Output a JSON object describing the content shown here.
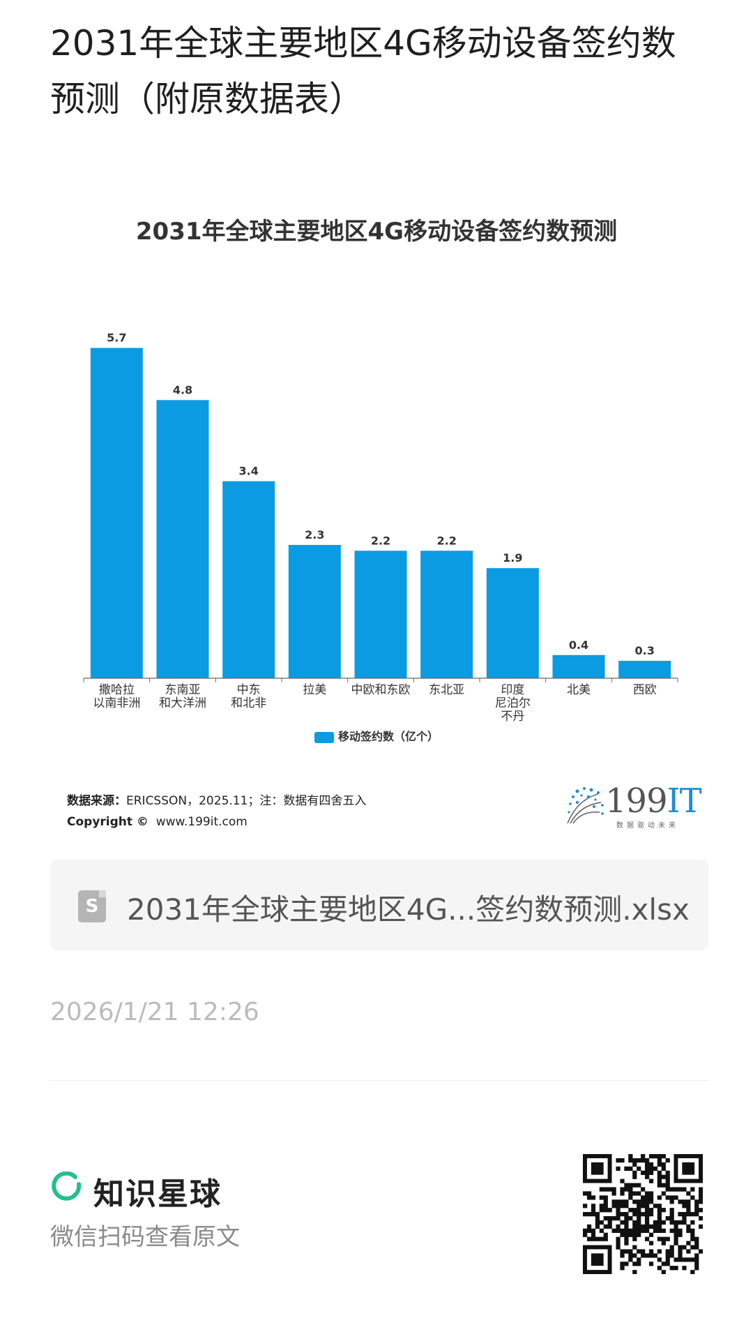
{
  "post": {
    "title": "2031年全球主要地区4G移动设备签约数预测（附原数据表）"
  },
  "chart_data": {
    "type": "bar",
    "title": "2031年全球主要地区4G移动设备签约数预测",
    "categories": [
      [
        "撒哈拉",
        "以南非洲"
      ],
      [
        "东南亚",
        "和大洋洲"
      ],
      [
        "中东",
        "和北非"
      ],
      [
        "拉美"
      ],
      [
        "中欧和东欧"
      ],
      [
        "东北亚"
      ],
      [
        "印度",
        "尼泊尔",
        "不丹"
      ],
      [
        "北美"
      ],
      [
        "西欧"
      ]
    ],
    "series": [
      {
        "name": "移动签约数（亿个）",
        "values": [
          5.7,
          4.8,
          3.4,
          2.3,
          2.2,
          2.2,
          1.9,
          0.4,
          0.3
        ]
      }
    ],
    "value_labels": [
      "5.7",
      "4.8",
      "3.4",
      "2.3",
      "2.2",
      "2.2",
      "1.9",
      "0.4",
      "0.3"
    ],
    "ylim": [
      0,
      5.9
    ],
    "grid": false,
    "legend_position": "bottom",
    "bar_color": "#0b9be3"
  },
  "source": {
    "label": "数据来源：",
    "text": "ERICSSON，2025.11；注：数据有四舍五入",
    "copyright_label": "Copyright ©",
    "copyright_url": "www.199it.com"
  },
  "logo": {
    "num": "199",
    "it": "IT",
    "tagline": "数据驱动未来"
  },
  "attachment": {
    "icon": "S",
    "filename": "2031年全球主要地区4G...签约数预测.xlsx"
  },
  "meta": {
    "timestamp": "2026/1/21 12:26"
  },
  "footer": {
    "brand": "知识星球",
    "scan_hint": "微信扫码查看原文"
  },
  "colors": {
    "accent_green": "#22c08a",
    "bar_blue": "#0b9be3"
  }
}
